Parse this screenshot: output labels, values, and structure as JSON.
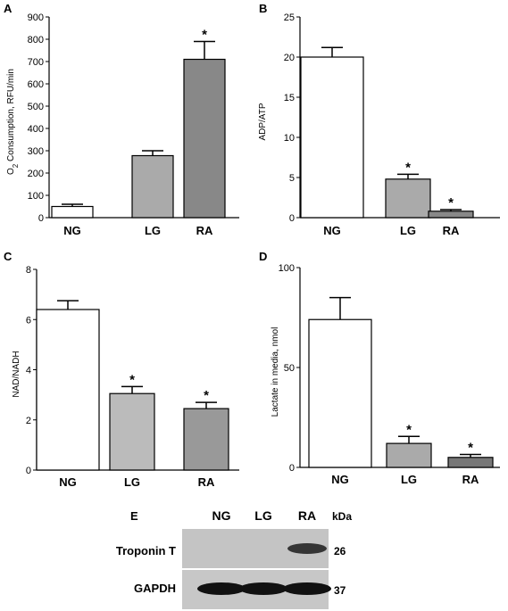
{
  "chart_data": [
    {
      "panel_letter": "A",
      "type": "bar",
      "ylabel": "O2 Consumption, RFU/min",
      "ylim": [
        0,
        900
      ],
      "yticks": [
        0,
        100,
        200,
        300,
        400,
        500,
        600,
        700,
        800,
        900
      ],
      "categories": [
        "NG",
        "LG",
        "RA"
      ],
      "values": [
        50,
        278,
        710
      ],
      "errors": [
        10,
        22,
        80
      ],
      "significant": [
        "",
        "",
        "*"
      ],
      "bar_colors": [
        "#ffffff",
        "#aaaaaa",
        "#888888"
      ]
    },
    {
      "panel_letter": "B",
      "type": "bar",
      "ylabel": "ADP/ATP",
      "ylim": [
        0,
        25
      ],
      "yticks": [
        0,
        5,
        10,
        15,
        20,
        25
      ],
      "categories": [
        "NG",
        "LG",
        "RA"
      ],
      "values": [
        20,
        4.8,
        0.8
      ],
      "errors": [
        1.2,
        0.6,
        0.2
      ],
      "significant": [
        "",
        "*",
        "*"
      ],
      "bar_colors": [
        "#ffffff",
        "#aaaaaa",
        "#888888"
      ]
    },
    {
      "panel_letter": "C",
      "type": "bar",
      "ylabel": "NAD/NADH",
      "ylim": [
        0,
        8
      ],
      "yticks": [
        0,
        2,
        4,
        6,
        8
      ],
      "categories": [
        "NG",
        "LG",
        "RA"
      ],
      "values": [
        6.4,
        3.05,
        2.45
      ],
      "errors": [
        0.35,
        0.28,
        0.25
      ],
      "significant": [
        "",
        "*",
        "*"
      ],
      "bar_colors": [
        "#ffffff",
        "#bbbbbb",
        "#999999"
      ]
    },
    {
      "panel_letter": "D",
      "type": "bar",
      "ylabel": "Lactate in media, nmol",
      "ylim": [
        0,
        100
      ],
      "yticks": [
        0,
        50,
        100
      ],
      "categories": [
        "NG",
        "LG",
        "RA"
      ],
      "values": [
        74,
        12,
        5
      ],
      "errors": [
        11,
        3.5,
        1.5
      ],
      "significant": [
        "",
        "*",
        "*"
      ],
      "bar_colors": [
        "#ffffff",
        "#aaaaaa",
        "#777777"
      ]
    }
  ],
  "blot": {
    "panel_letter": "E",
    "lanes": [
      "NG",
      "LG",
      "RA"
    ],
    "kda_label": "kDa",
    "rows": [
      {
        "label": "Troponin T",
        "kda": "26",
        "intensity": [
          0,
          0,
          0.8
        ]
      },
      {
        "label": "GAPDH",
        "kda": "37",
        "intensity": [
          1,
          1,
          1
        ]
      }
    ]
  }
}
